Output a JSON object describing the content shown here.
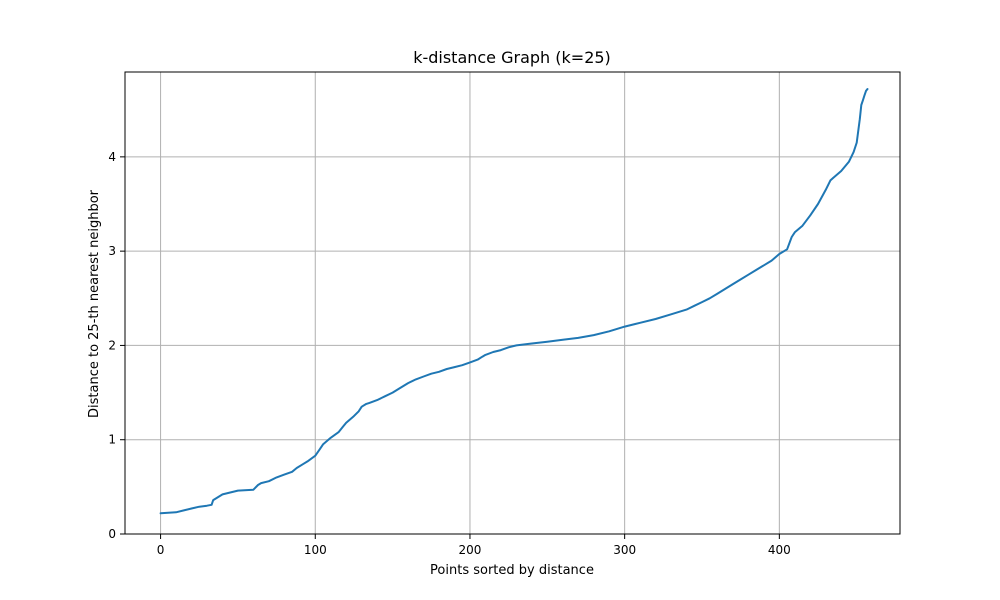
{
  "chart_data": {
    "type": "line",
    "title": "k-distance Graph (k=25)",
    "xlabel": "Points sorted by distance",
    "ylabel": "Distance to 25-th nearest neighbor",
    "xlim": [
      -23,
      478
    ],
    "ylim": [
      0,
      4.9
    ],
    "xticks": [
      0,
      100,
      200,
      300,
      400
    ],
    "yticks": [
      0,
      1,
      2,
      3,
      4
    ],
    "grid": true,
    "colors": {
      "series": "#1f77b4"
    },
    "series": [
      {
        "x": [
          0,
          10,
          15,
          20,
          25,
          30,
          33,
          34,
          40,
          45,
          50,
          60,
          63,
          65,
          70,
          75,
          80,
          85,
          88,
          92,
          95,
          100,
          103,
          105,
          110,
          115,
          118,
          120,
          125,
          128,
          130,
          133,
          135,
          140,
          145,
          150,
          155,
          160,
          165,
          170,
          175,
          180,
          185,
          190,
          195,
          200,
          205,
          208,
          210,
          215,
          220,
          225,
          230,
          240,
          250,
          260,
          270,
          280,
          290,
          300,
          310,
          320,
          330,
          340,
          345,
          350,
          355,
          360,
          365,
          370,
          375,
          380,
          385,
          390,
          395,
          400,
          405,
          408,
          410,
          415,
          420,
          425,
          430,
          433,
          435,
          440,
          445,
          448,
          450,
          452,
          453,
          454,
          455,
          456,
          457
        ],
        "y": [
          0.22,
          0.23,
          0.25,
          0.27,
          0.29,
          0.3,
          0.31,
          0.36,
          0.42,
          0.44,
          0.46,
          0.47,
          0.52,
          0.54,
          0.56,
          0.6,
          0.63,
          0.66,
          0.7,
          0.74,
          0.77,
          0.83,
          0.9,
          0.95,
          1.02,
          1.08,
          1.14,
          1.18,
          1.25,
          1.3,
          1.35,
          1.38,
          1.39,
          1.42,
          1.46,
          1.5,
          1.55,
          1.6,
          1.64,
          1.67,
          1.7,
          1.72,
          1.75,
          1.77,
          1.79,
          1.82,
          1.85,
          1.88,
          1.9,
          1.93,
          1.95,
          1.98,
          2.0,
          2.02,
          2.04,
          2.06,
          2.08,
          2.11,
          2.15,
          2.2,
          2.24,
          2.28,
          2.33,
          2.38,
          2.42,
          2.46,
          2.5,
          2.55,
          2.6,
          2.65,
          2.7,
          2.75,
          2.8,
          2.85,
          2.9,
          2.97,
          3.02,
          3.15,
          3.2,
          3.27,
          3.38,
          3.5,
          3.65,
          3.75,
          3.78,
          3.85,
          3.95,
          4.05,
          4.15,
          4.4,
          4.55,
          4.6,
          4.65,
          4.7,
          4.72
        ]
      }
    ]
  }
}
